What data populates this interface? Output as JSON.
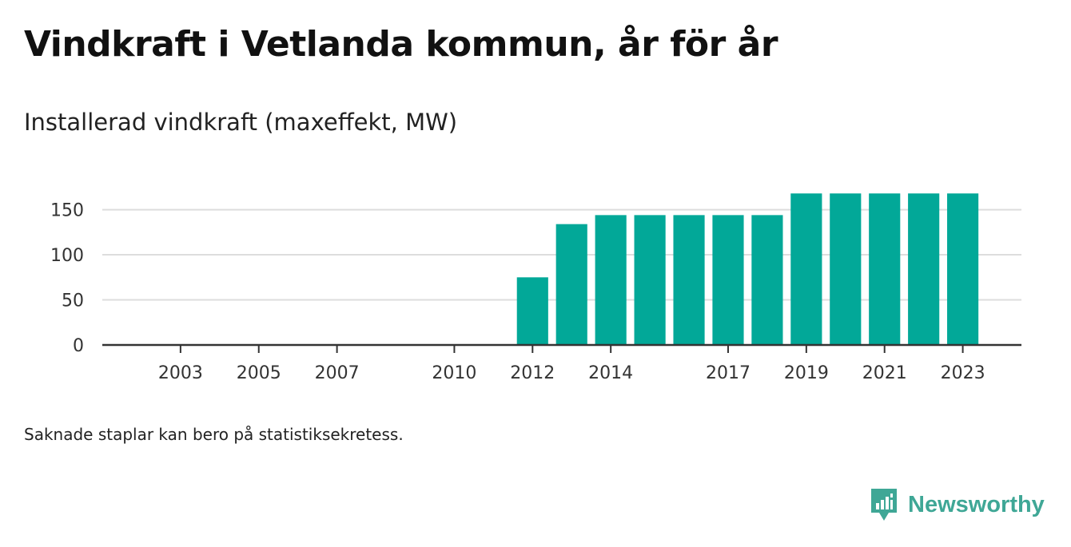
{
  "header": {
    "title": "Vindkraft i Vetlanda kommun, år för år",
    "subtitle": "Installerad vindkraft (maxeffekt, MW)"
  },
  "footer": {
    "note": "Saknade staplar kan bero på statistiksekretess.",
    "brand_name": "Newsworthy",
    "brand_icon": "newsworthy-logo-icon"
  },
  "colors": {
    "bar": "#02a898",
    "axis": "#333333",
    "grid": "#dddddd",
    "brand": "#3fa796"
  },
  "chart_data": {
    "type": "bar",
    "title": "Vindkraft i Vetlanda kommun, år för år",
    "subtitle": "Installerad vindkraft (maxeffekt, MW)",
    "xlabel": "",
    "ylabel": "",
    "x": [
      2012,
      2013,
      2014,
      2015,
      2016,
      2017,
      2018,
      2019,
      2020,
      2021,
      2022,
      2023
    ],
    "values": [
      75,
      134,
      144,
      144,
      144,
      144,
      144,
      168,
      168,
      168,
      168,
      168
    ],
    "xlim": [
      2001,
      2024.5
    ],
    "ylim": [
      0,
      170
    ],
    "y_ticks": [
      0,
      50,
      100,
      150
    ],
    "x_ticks": [
      2003,
      2005,
      2007,
      2010,
      2012,
      2014,
      2017,
      2019,
      2021,
      2023
    ],
    "grid": true,
    "legend": "none"
  }
}
